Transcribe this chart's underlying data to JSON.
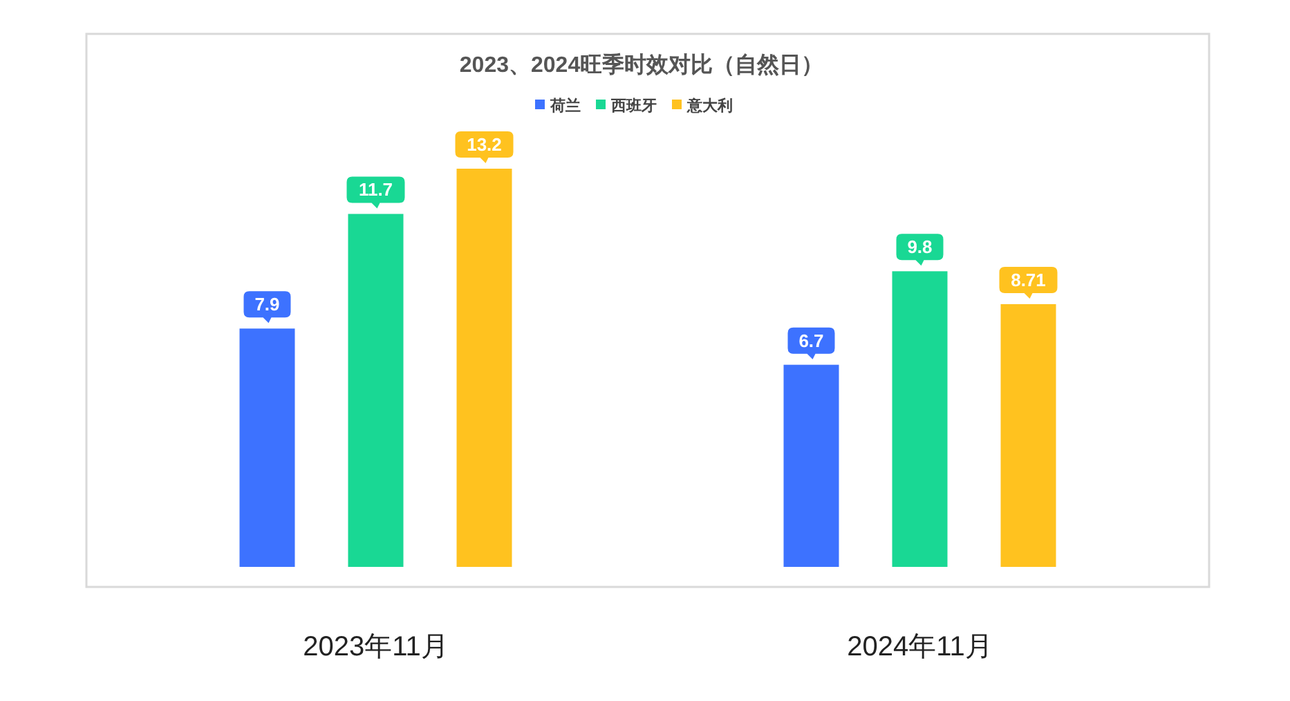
{
  "chart_data": {
    "type": "bar",
    "title": "2023、2024旺季时效对比（自然日）",
    "categories": [
      "2023年11月",
      "2024年11月"
    ],
    "series": [
      {
        "name": "荷兰",
        "color": "#3d72ff",
        "values": [
          7.9,
          6.7
        ]
      },
      {
        "name": "西班牙",
        "color": "#19d894",
        "values": [
          11.7,
          9.8
        ]
      },
      {
        "name": "意大利",
        "color": "#ffc21f",
        "values": [
          13.2,
          8.71
        ]
      }
    ],
    "data_labels": true,
    "legend": "top",
    "grid": false
  }
}
